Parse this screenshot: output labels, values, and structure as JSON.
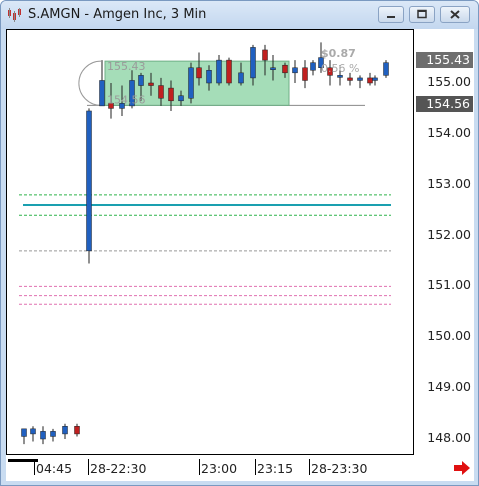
{
  "window": {
    "title": "S.AMGN - Amgen Inc, 3 Min",
    "controls": {
      "minimize": "minimize-icon",
      "maximize": "maximize-icon",
      "close": "close-icon"
    }
  },
  "colors": {
    "up": "#2060c0",
    "down": "#c02020",
    "box": "#8fd5a6",
    "teal": "#1aa0b0",
    "green_dash": "#2db34a",
    "pink_dash": "#e070b0"
  },
  "yaxis": {
    "labels": [
      "155.00",
      "154.00",
      "153.00",
      "152.00",
      "151.00",
      "150.00",
      "149.00",
      "148.00"
    ],
    "tag_high": "155.43",
    "tag_low": "154.56"
  },
  "xaxis": {
    "labels": [
      "04:45",
      "28-22:30",
      "23:00",
      "23:15",
      "28-23:30"
    ]
  },
  "annotations": {
    "box_high": "155.43",
    "box_low": "154.56",
    "change": "$0.87",
    "change_pct": "0.56 %"
  },
  "chart_data": {
    "type": "candlestick",
    "ylim": [
      147.6,
      155.9
    ],
    "candles": [
      {
        "o": 148.05,
        "h": 148.2,
        "l": 147.9,
        "c": 148.2
      },
      {
        "o": 148.1,
        "h": 148.25,
        "l": 147.95,
        "c": 148.2
      },
      {
        "o": 148.0,
        "h": 148.25,
        "l": 147.9,
        "c": 148.15
      },
      {
        "o": 148.05,
        "h": 148.2,
        "l": 147.95,
        "c": 148.15
      },
      {
        "o": 148.1,
        "h": 148.3,
        "l": 148.0,
        "c": 148.25
      },
      {
        "o": 148.25,
        "h": 148.3,
        "l": 148.05,
        "c": 148.1
      },
      {
        "o": 151.7,
        "h": 154.5,
        "l": 151.45,
        "c": 154.45
      },
      {
        "o": 154.55,
        "h": 155.45,
        "l": 154.55,
        "c": 155.05
      },
      {
        "o": 154.6,
        "h": 155.0,
        "l": 154.3,
        "c": 154.5
      },
      {
        "o": 154.5,
        "h": 154.95,
        "l": 154.35,
        "c": 154.6
      },
      {
        "o": 154.55,
        "h": 155.25,
        "l": 154.5,
        "c": 155.05
      },
      {
        "o": 154.95,
        "h": 155.2,
        "l": 154.65,
        "c": 155.15
      },
      {
        "o": 155.0,
        "h": 155.2,
        "l": 154.75,
        "c": 154.95
      },
      {
        "o": 154.95,
        "h": 155.1,
        "l": 154.55,
        "c": 154.7
      },
      {
        "o": 154.9,
        "h": 155.05,
        "l": 154.45,
        "c": 154.65
      },
      {
        "o": 154.65,
        "h": 154.85,
        "l": 154.55,
        "c": 154.75
      },
      {
        "o": 154.7,
        "h": 155.4,
        "l": 154.6,
        "c": 155.3
      },
      {
        "o": 155.3,
        "h": 155.6,
        "l": 154.95,
        "c": 155.1
      },
      {
        "o": 155.0,
        "h": 155.35,
        "l": 154.85,
        "c": 155.25
      },
      {
        "o": 155.0,
        "h": 155.55,
        "l": 154.95,
        "c": 155.45
      },
      {
        "o": 155.45,
        "h": 155.5,
        "l": 154.95,
        "c": 155.0
      },
      {
        "o": 155.0,
        "h": 155.4,
        "l": 154.95,
        "c": 155.2
      },
      {
        "o": 155.1,
        "h": 155.75,
        "l": 154.95,
        "c": 155.7
      },
      {
        "o": 155.65,
        "h": 155.75,
        "l": 155.15,
        "c": 155.45
      },
      {
        "o": 155.3,
        "h": 155.55,
        "l": 155.05,
        "c": 155.3
      },
      {
        "o": 155.35,
        "h": 155.4,
        "l": 155.1,
        "c": 155.2
      },
      {
        "o": 155.2,
        "h": 155.45,
        "l": 155.0,
        "c": 155.3
      },
      {
        "o": 155.3,
        "h": 155.45,
        "l": 154.9,
        "c": 155.05
      },
      {
        "o": 155.25,
        "h": 155.45,
        "l": 155.15,
        "c": 155.4
      },
      {
        "o": 155.3,
        "h": 155.8,
        "l": 155.2,
        "c": 155.5
      },
      {
        "o": 155.3,
        "h": 155.45,
        "l": 154.95,
        "c": 155.15
      },
      {
        "o": 155.15,
        "h": 155.35,
        "l": 154.95,
        "c": 155.15
      },
      {
        "o": 155.1,
        "h": 155.2,
        "l": 154.95,
        "c": 155.05
      },
      {
        "o": 155.05,
        "h": 155.15,
        "l": 154.9,
        "c": 155.1
      },
      {
        "o": 155.1,
        "h": 155.2,
        "l": 154.95,
        "c": 155.0
      },
      {
        "o": 155.05,
        "h": 155.15,
        "l": 154.95,
        "c": 155.1
      },
      {
        "o": 155.15,
        "h": 155.45,
        "l": 155.1,
        "c": 155.4
      }
    ],
    "levels": [
      {
        "price": 152.8,
        "style": "green-dashed"
      },
      {
        "price": 152.6,
        "style": "teal-solid"
      },
      {
        "price": 152.4,
        "style": "green-dashed"
      },
      {
        "price": 151.7,
        "style": "gray-dashed"
      },
      {
        "price": 151.0,
        "style": "pink-dashed"
      },
      {
        "price": 150.82,
        "style": "pink-dashed"
      },
      {
        "price": 150.65,
        "style": "pink-dashed"
      },
      {
        "price": 154.56,
        "style": "gray-solid"
      }
    ],
    "range_box": {
      "high": 155.43,
      "low": 154.56
    }
  }
}
